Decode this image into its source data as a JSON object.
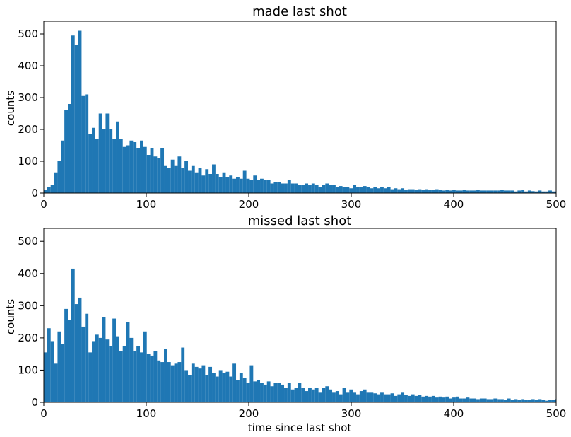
{
  "chart_data": [
    {
      "type": "bar",
      "title": "made last shot",
      "xlabel": "",
      "ylabel": "counts",
      "xlim": [
        0,
        500
      ],
      "ylim": [
        0,
        540
      ],
      "bin_width": 3.35,
      "xticks": [
        0,
        100,
        200,
        300,
        400,
        500
      ],
      "yticks": [
        0,
        100,
        200,
        300,
        400,
        500
      ],
      "bar_color": "#1f77b4",
      "grid": false,
      "values": [
        10,
        20,
        25,
        65,
        100,
        165,
        260,
        280,
        495,
        465,
        510,
        305,
        310,
        185,
        205,
        170,
        250,
        200,
        250,
        200,
        170,
        225,
        170,
        145,
        150,
        165,
        160,
        140,
        165,
        145,
        120,
        140,
        115,
        110,
        140,
        85,
        80,
        105,
        85,
        115,
        80,
        100,
        70,
        85,
        65,
        80,
        55,
        75,
        60,
        90,
        60,
        50,
        65,
        50,
        55,
        45,
        50,
        45,
        70,
        45,
        40,
        55,
        40,
        45,
        40,
        40,
        30,
        35,
        35,
        30,
        30,
        40,
        30,
        30,
        25,
        25,
        30,
        25,
        30,
        25,
        20,
        25,
        30,
        25,
        25,
        20,
        22,
        20,
        20,
        15,
        25,
        20,
        18,
        22,
        18,
        15,
        20,
        15,
        18,
        15,
        18,
        12,
        15,
        12,
        15,
        10,
        12,
        12,
        10,
        12,
        10,
        12,
        10,
        10,
        12,
        10,
        8,
        10,
        8,
        10,
        8,
        8,
        10,
        8,
        8,
        8,
        10,
        8,
        8,
        8,
        8,
        8,
        8,
        10,
        8,
        8,
        8,
        5,
        8,
        10,
        5,
        8,
        6,
        5,
        8,
        5,
        5,
        8,
        5,
        5
      ]
    },
    {
      "type": "bar",
      "title": "missed last shot",
      "xlabel": "time since last shot",
      "ylabel": "counts",
      "xlim": [
        0,
        500
      ],
      "ylim": [
        0,
        540
      ],
      "bin_width": 3.35,
      "xticks": [
        0,
        100,
        200,
        300,
        400,
        500
      ],
      "yticks": [
        0,
        100,
        200,
        300,
        400,
        500
      ],
      "bar_color": "#1f77b4",
      "grid": false,
      "values": [
        155,
        230,
        190,
        120,
        220,
        180,
        290,
        255,
        415,
        305,
        325,
        235,
        275,
        155,
        190,
        210,
        200,
        265,
        195,
        175,
        260,
        205,
        160,
        175,
        250,
        200,
        160,
        175,
        155,
        220,
        150,
        145,
        160,
        130,
        125,
        165,
        125,
        115,
        120,
        125,
        170,
        100,
        85,
        120,
        110,
        105,
        115,
        85,
        110,
        90,
        80,
        100,
        90,
        95,
        80,
        120,
        70,
        90,
        75,
        60,
        115,
        65,
        70,
        60,
        55,
        65,
        50,
        60,
        60,
        55,
        45,
        60,
        40,
        45,
        60,
        45,
        35,
        45,
        40,
        45,
        30,
        45,
        50,
        40,
        30,
        35,
        25,
        45,
        30,
        40,
        30,
        25,
        35,
        40,
        30,
        30,
        28,
        25,
        30,
        25,
        25,
        28,
        20,
        25,
        30,
        22,
        20,
        25,
        20,
        22,
        18,
        20,
        18,
        20,
        15,
        18,
        15,
        18,
        12,
        15,
        18,
        12,
        12,
        15,
        12,
        12,
        10,
        12,
        12,
        10,
        10,
        12,
        10,
        10,
        8,
        12,
        8,
        10,
        8,
        10,
        8,
        8,
        10,
        8,
        10,
        8,
        5,
        8,
        8,
        10,
        5,
        8,
        8,
        5,
        35,
        5
      ]
    }
  ]
}
